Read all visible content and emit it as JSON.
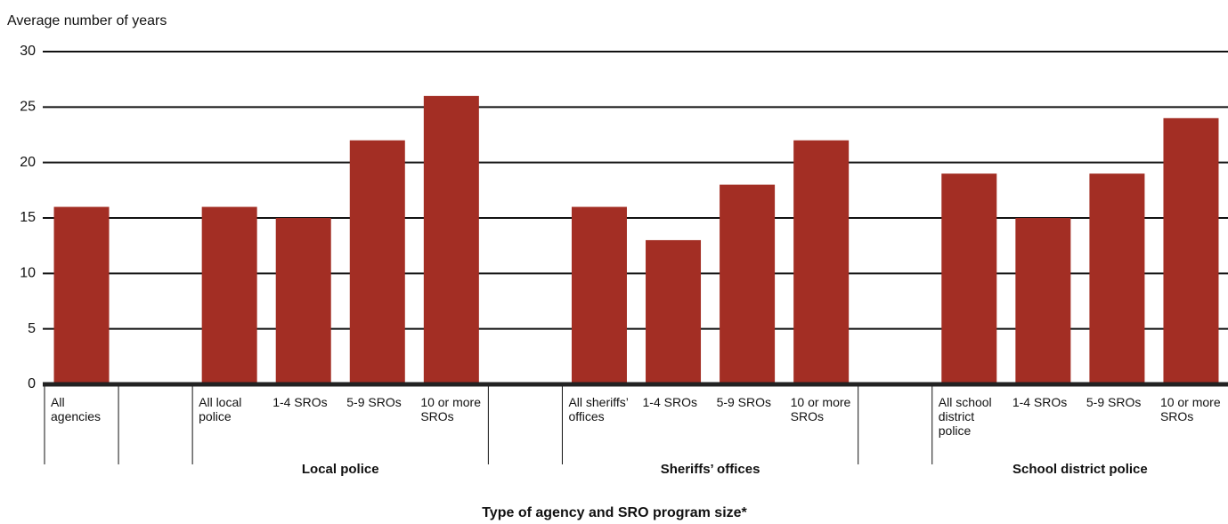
{
  "chart_data": {
    "type": "bar",
    "title": "Average number of years",
    "x_label": "Type of agency and SRO program size*",
    "categories": [
      "All agencies",
      null,
      "All local police",
      "1-4 SROs",
      "5-9 SROs",
      "10 or more SROs",
      null,
      "All sheriffs’ offices",
      "1-4 SROs",
      "5-9 SROs",
      "10 or more SROs",
      null,
      "All school district police",
      "1-4 SROs",
      "5-9 SROs",
      "10 or more SROs"
    ],
    "values": [
      16,
      null,
      16,
      15,
      22,
      26,
      null,
      16,
      13,
      18,
      22,
      null,
      19,
      15,
      19,
      24
    ],
    "groups": [
      {
        "name": "Local police",
        "first": 2,
        "last": 5
      },
      {
        "name": "Sheriffs’ offices",
        "first": 7,
        "last": 10
      },
      {
        "name": "School district police",
        "first": 12,
        "last": 15
      }
    ],
    "color": "#a32e24",
    "ylim": [
      0,
      30
    ],
    "yticks": [
      0,
      5,
      10,
      15,
      20,
      25,
      30
    ],
    "grid": true
  }
}
